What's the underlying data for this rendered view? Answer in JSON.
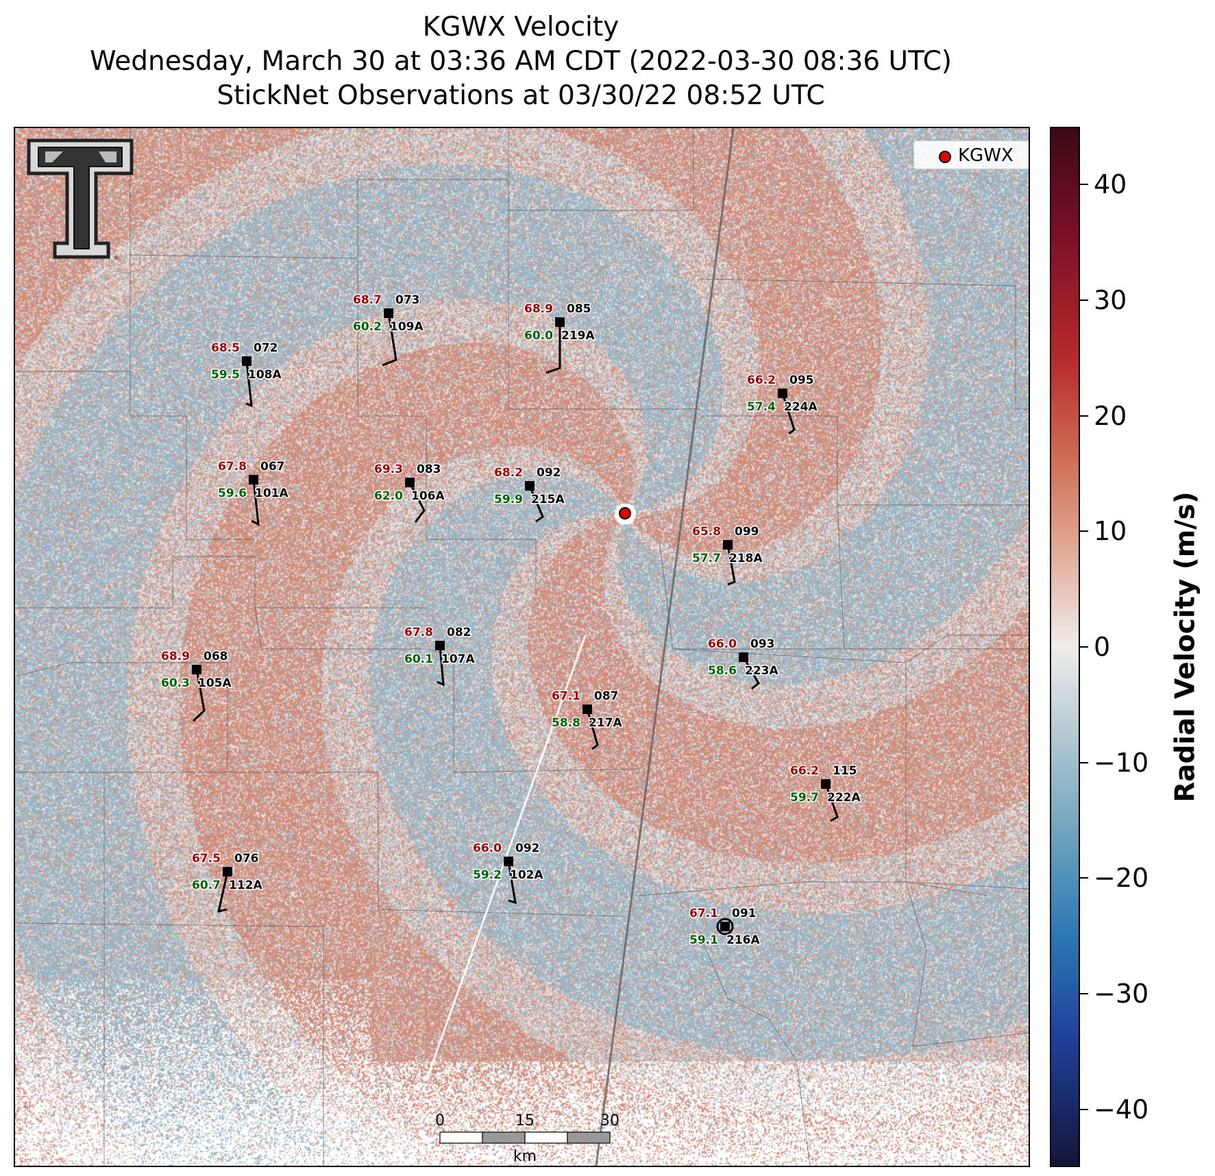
{
  "title": {
    "line1": "KGWX Velocity",
    "line2": "Wednesday, March 30 at 03:36 AM CDT (2022-03-30 08:36 UTC)",
    "line3": "StickNet Observations at 03/30/22 08:52 UTC"
  },
  "legend": {
    "label": "KGWX",
    "marker_color": "#e00000"
  },
  "colorbar": {
    "title": "Radial Velocity (m/s)",
    "min": -45,
    "max": 45,
    "ticks": [
      "40",
      "30",
      "20",
      "10",
      "0",
      "−10",
      "−20",
      "−30",
      "−40"
    ]
  },
  "scale_bar": {
    "labels": [
      "0",
      "15",
      "30"
    ],
    "unit": "km"
  },
  "stations": [
    {
      "id": "108A",
      "temp": "68.5",
      "dew": "59.5",
      "dir": "072"
    },
    {
      "id": "109A",
      "temp": "68.7",
      "dew": "60.2",
      "dir": "073"
    },
    {
      "id": "219A",
      "temp": "68.9",
      "dew": "60.0",
      "dir": "085"
    },
    {
      "id": "224A",
      "temp": "66.2",
      "dew": "57.4",
      "dir": "095"
    },
    {
      "id": "101A",
      "temp": "67.8",
      "dew": "59.6",
      "dir": "067"
    },
    {
      "id": "106A",
      "temp": "69.3",
      "dew": "62.0",
      "dir": "083"
    },
    {
      "id": "215A",
      "temp": "68.2",
      "dew": "59.9",
      "dir": "092"
    },
    {
      "id": "218A",
      "temp": "65.8",
      "dew": "57.7",
      "dir": "099"
    },
    {
      "id": "107A",
      "temp": "67.8",
      "dew": "60.1",
      "dir": "082"
    },
    {
      "id": "223A",
      "temp": "66.0",
      "dew": "58.6",
      "dir": "093"
    },
    {
      "id": "105A",
      "temp": "68.9",
      "dew": "60.3",
      "dir": "068"
    },
    {
      "id": "217A",
      "temp": "67.1",
      "dew": "58.8",
      "dir": "087"
    },
    {
      "id": "222A",
      "temp": "66.2",
      "dew": "59.7",
      "dir": "115"
    },
    {
      "id": "112A",
      "temp": "67.5",
      "dew": "60.7",
      "dir": "076"
    },
    {
      "id": "102A",
      "temp": "66.0",
      "dew": "59.2",
      "dir": "092"
    },
    {
      "id": "216A",
      "temp": "67.1",
      "dew": "59.1",
      "dir": "091"
    }
  ],
  "colors": {
    "temp": "#a50000",
    "dew": "#006400",
    "station": "#000000"
  }
}
